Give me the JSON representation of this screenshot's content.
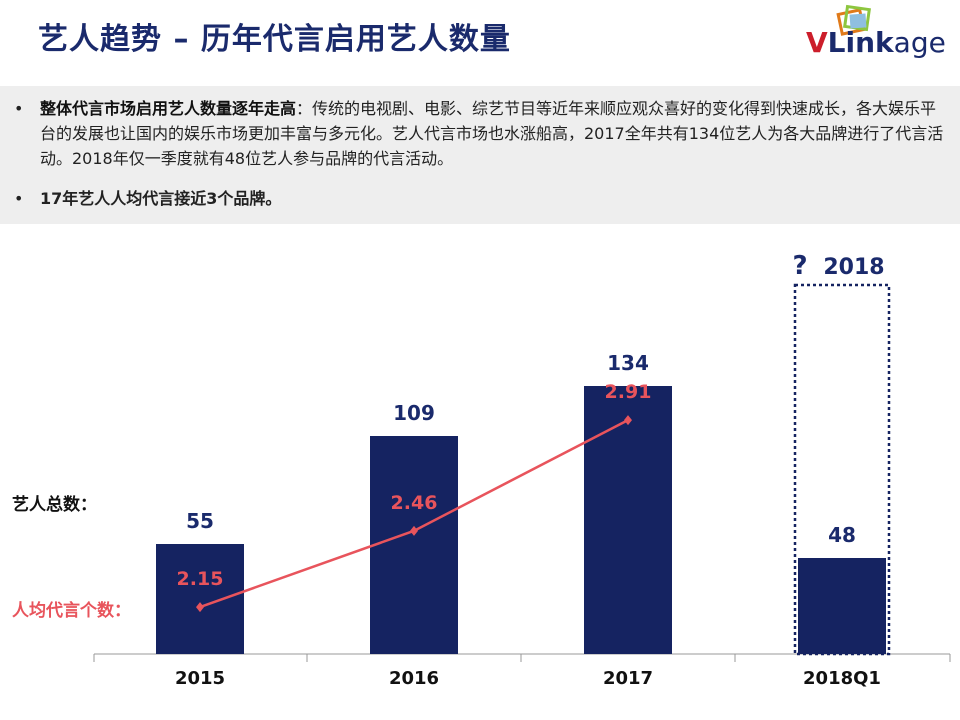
{
  "header": {
    "title": "艺人趋势 – 历年代言启用艺人数量",
    "logo_v": "V",
    "logo_link": "Link",
    "logo_age": "age"
  },
  "bullets": [
    {
      "dot": "•",
      "lead": "整体代言市场启用艺人数量逐年走高",
      "body": "：传统的电视剧、电影、综艺节目等近年来顺应观众喜好的变化得到快速成长，各大娱乐平台的发展也让国内的娱乐市场更加丰富与多元化。艺人代言市场也水涨船高，2017全年共有134位艺人为各大品牌进行了代言活动。2018年仅一季度就有48位艺人参与品牌的代言活动。"
    },
    {
      "dot": "•",
      "text": "17年艺人人均代言接近3个品牌。"
    }
  ],
  "colors": {
    "bar": "#152361",
    "line": "#e8545c",
    "text_dark": "#1a2a6c"
  },
  "chart_data": {
    "type": "bar",
    "categories": [
      "2015",
      "2016",
      "2017",
      "2018Q1"
    ],
    "series": [
      {
        "name": "艺人总数：",
        "type": "bar",
        "values": [
          55,
          109,
          134,
          48
        ]
      },
      {
        "name": "人均代言个数：",
        "type": "line",
        "values": [
          2.15,
          2.46,
          2.91,
          null
        ]
      }
    ],
    "bar_labels": [
      "55",
      "109",
      "134",
      "48"
    ],
    "line_labels": [
      "2.15",
      "2.46",
      "2.91"
    ],
    "annotation": {
      "question": "?",
      "year": "2018"
    },
    "ylim": [
      0,
      160
    ]
  }
}
